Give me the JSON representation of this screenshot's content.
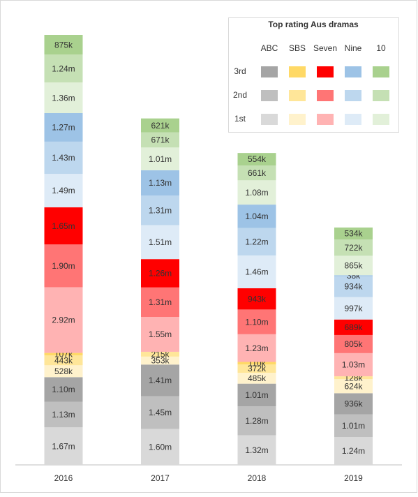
{
  "chart_data": {
    "type": "stacked_bar",
    "legend_title": "Top rating Aus dramas",
    "categories": [
      "2016",
      "2017",
      "2018",
      "2019"
    ],
    "ranks": [
      "1st",
      "2nd",
      "3rd"
    ],
    "series": [
      {
        "name": "ABC",
        "colors": [
          "#d9d9d9",
          "#bfbfbf",
          "#a5a5a5"
        ],
        "values": [
          [
            1670000,
            1600000,
            1320000,
            1240000
          ],
          [
            1130000,
            1450000,
            1280000,
            1010000
          ],
          [
            1100000,
            1410000,
            1010000,
            936000
          ]
        ],
        "value_labels": [
          [
            "1.67m",
            "1.60m",
            "1.32m",
            "1.24m"
          ],
          [
            "1.13m",
            "1.45m",
            "1.28m",
            "1.01m"
          ],
          [
            "1.10m",
            "1.41m",
            "1.01m",
            "936k"
          ]
        ]
      },
      {
        "name": "SBS",
        "colors": [
          "#fff2cc",
          "#ffe699",
          "#ffd966"
        ],
        "values": [
          [
            528000,
            353000,
            485000,
            624000
          ],
          [
            443000,
            215000,
            372000,
            128000
          ],
          [
            107000,
            null,
            110000,
            null
          ]
        ],
        "value_labels": [
          [
            "528k",
            "353k",
            "485k",
            "624k"
          ],
          [
            "443k",
            "215k",
            "372k",
            "128k"
          ],
          [
            "107k",
            null,
            "110k",
            null
          ]
        ]
      },
      {
        "name": "Seven",
        "colors": [
          "#ffb3b3",
          "#ff7575",
          "#ff0000"
        ],
        "values": [
          [
            2920000,
            1550000,
            1230000,
            1030000
          ],
          [
            1900000,
            1310000,
            1100000,
            805000
          ],
          [
            1650000,
            1260000,
            943000,
            689000
          ]
        ],
        "value_labels": [
          [
            "2.92m",
            "1.55m",
            "1.23m",
            "1.03m"
          ],
          [
            "1.90m",
            "1.31m",
            "1.10m",
            "805k"
          ],
          [
            "1.65m",
            "1.26m",
            "943k",
            "689k"
          ]
        ]
      },
      {
        "name": "Nine",
        "colors": [
          "#deebf7",
          "#bdd7ee",
          "#9dc3e6"
        ],
        "values": [
          [
            1490000,
            1510000,
            1460000,
            997000
          ],
          [
            1430000,
            1310000,
            1220000,
            934000
          ],
          [
            1270000,
            1130000,
            1040000,
            38000
          ]
        ],
        "value_labels": [
          [
            "1.49m",
            "1.51m",
            "1.46m",
            "997k"
          ],
          [
            "1.43m",
            "1.31m",
            "1.22m",
            "934k"
          ],
          [
            "1.27m",
            "1.13m",
            "1.04m",
            "38k"
          ]
        ]
      },
      {
        "name": "10",
        "colors": [
          "#e2f0d9",
          "#c5e0b4",
          "#a9d18e"
        ],
        "values": [
          [
            1360000,
            1010000,
            1080000,
            865000
          ],
          [
            1240000,
            671000,
            661000,
            722000
          ],
          [
            875000,
            621000,
            554000,
            534000
          ]
        ],
        "value_labels": [
          [
            "1.36m",
            "1.01m",
            "1.08m",
            "865k"
          ],
          [
            "1.24m",
            "671k",
            "661k",
            "722k"
          ],
          [
            "875k",
            "621k",
            "554k",
            "534k"
          ]
        ]
      }
    ]
  }
}
